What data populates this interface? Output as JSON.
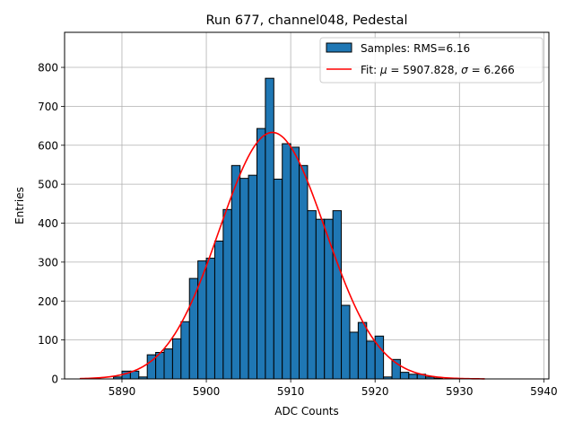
{
  "chart_data": {
    "type": "bar",
    "title": "Run 677, channel048, Pedestal",
    "xlabel": "ADC Counts",
    "ylabel": "Entries",
    "xlim": [
      5883.2,
      5940.6
    ],
    "ylim": [
      0,
      890
    ],
    "grid": true,
    "legend_position": "top-right",
    "x_ticks": [
      5890,
      5900,
      5910,
      5920,
      5930,
      5940
    ],
    "y_ticks": [
      0,
      100,
      200,
      300,
      400,
      500,
      600,
      700,
      800
    ],
    "histogram": {
      "name": "Samples: RMS=6.16",
      "bin_width": 1,
      "bins": [
        {
          "x": 5889,
          "y": 5
        },
        {
          "x": 5890,
          "y": 20
        },
        {
          "x": 5891,
          "y": 20
        },
        {
          "x": 5892,
          "y": 5
        },
        {
          "x": 5893,
          "y": 62
        },
        {
          "x": 5894,
          "y": 68
        },
        {
          "x": 5895,
          "y": 77
        },
        {
          "x": 5896,
          "y": 103
        },
        {
          "x": 5897,
          "y": 147
        },
        {
          "x": 5898,
          "y": 258
        },
        {
          "x": 5899,
          "y": 303
        },
        {
          "x": 5900,
          "y": 310
        },
        {
          "x": 5901,
          "y": 354
        },
        {
          "x": 5902,
          "y": 435
        },
        {
          "x": 5903,
          "y": 548
        },
        {
          "x": 5904,
          "y": 515
        },
        {
          "x": 5905,
          "y": 523
        },
        {
          "x": 5906,
          "y": 643
        },
        {
          "x": 5907,
          "y": 772
        },
        {
          "x": 5908,
          "y": 513
        },
        {
          "x": 5909,
          "y": 604
        },
        {
          "x": 5910,
          "y": 595
        },
        {
          "x": 5911,
          "y": 548
        },
        {
          "x": 5912,
          "y": 432
        },
        {
          "x": 5913,
          "y": 410
        },
        {
          "x": 5914,
          "y": 410
        },
        {
          "x": 5915,
          "y": 432
        },
        {
          "x": 5916,
          "y": 189
        },
        {
          "x": 5917,
          "y": 120
        },
        {
          "x": 5918,
          "y": 145
        },
        {
          "x": 5919,
          "y": 97
        },
        {
          "x": 5920,
          "y": 110
        },
        {
          "x": 5921,
          "y": 5
        },
        {
          "x": 5922,
          "y": 50
        },
        {
          "x": 5923,
          "y": 17
        },
        {
          "x": 5924,
          "y": 12
        },
        {
          "x": 5925,
          "y": 12
        },
        {
          "x": 5926,
          "y": 5
        },
        {
          "x": 5927,
          "y": 2
        }
      ]
    },
    "fit": {
      "name": "Fit: μ = 5907.828, σ = 6.266",
      "label_prefix": "Fit: ",
      "mu_symbol": "μ",
      "mu_text": " = 5907.828, ",
      "sigma_symbol": "σ",
      "sigma_text": " = 6.266",
      "mu": 5907.828,
      "sigma": 6.266,
      "amplitude": 633,
      "x_range": [
        5885,
        5933
      ]
    },
    "colors": {
      "bar_fill": "#1f77b4",
      "bar_edge": "#000000",
      "fit_line": "#ff0000",
      "grid": "#b0b0b0"
    }
  }
}
